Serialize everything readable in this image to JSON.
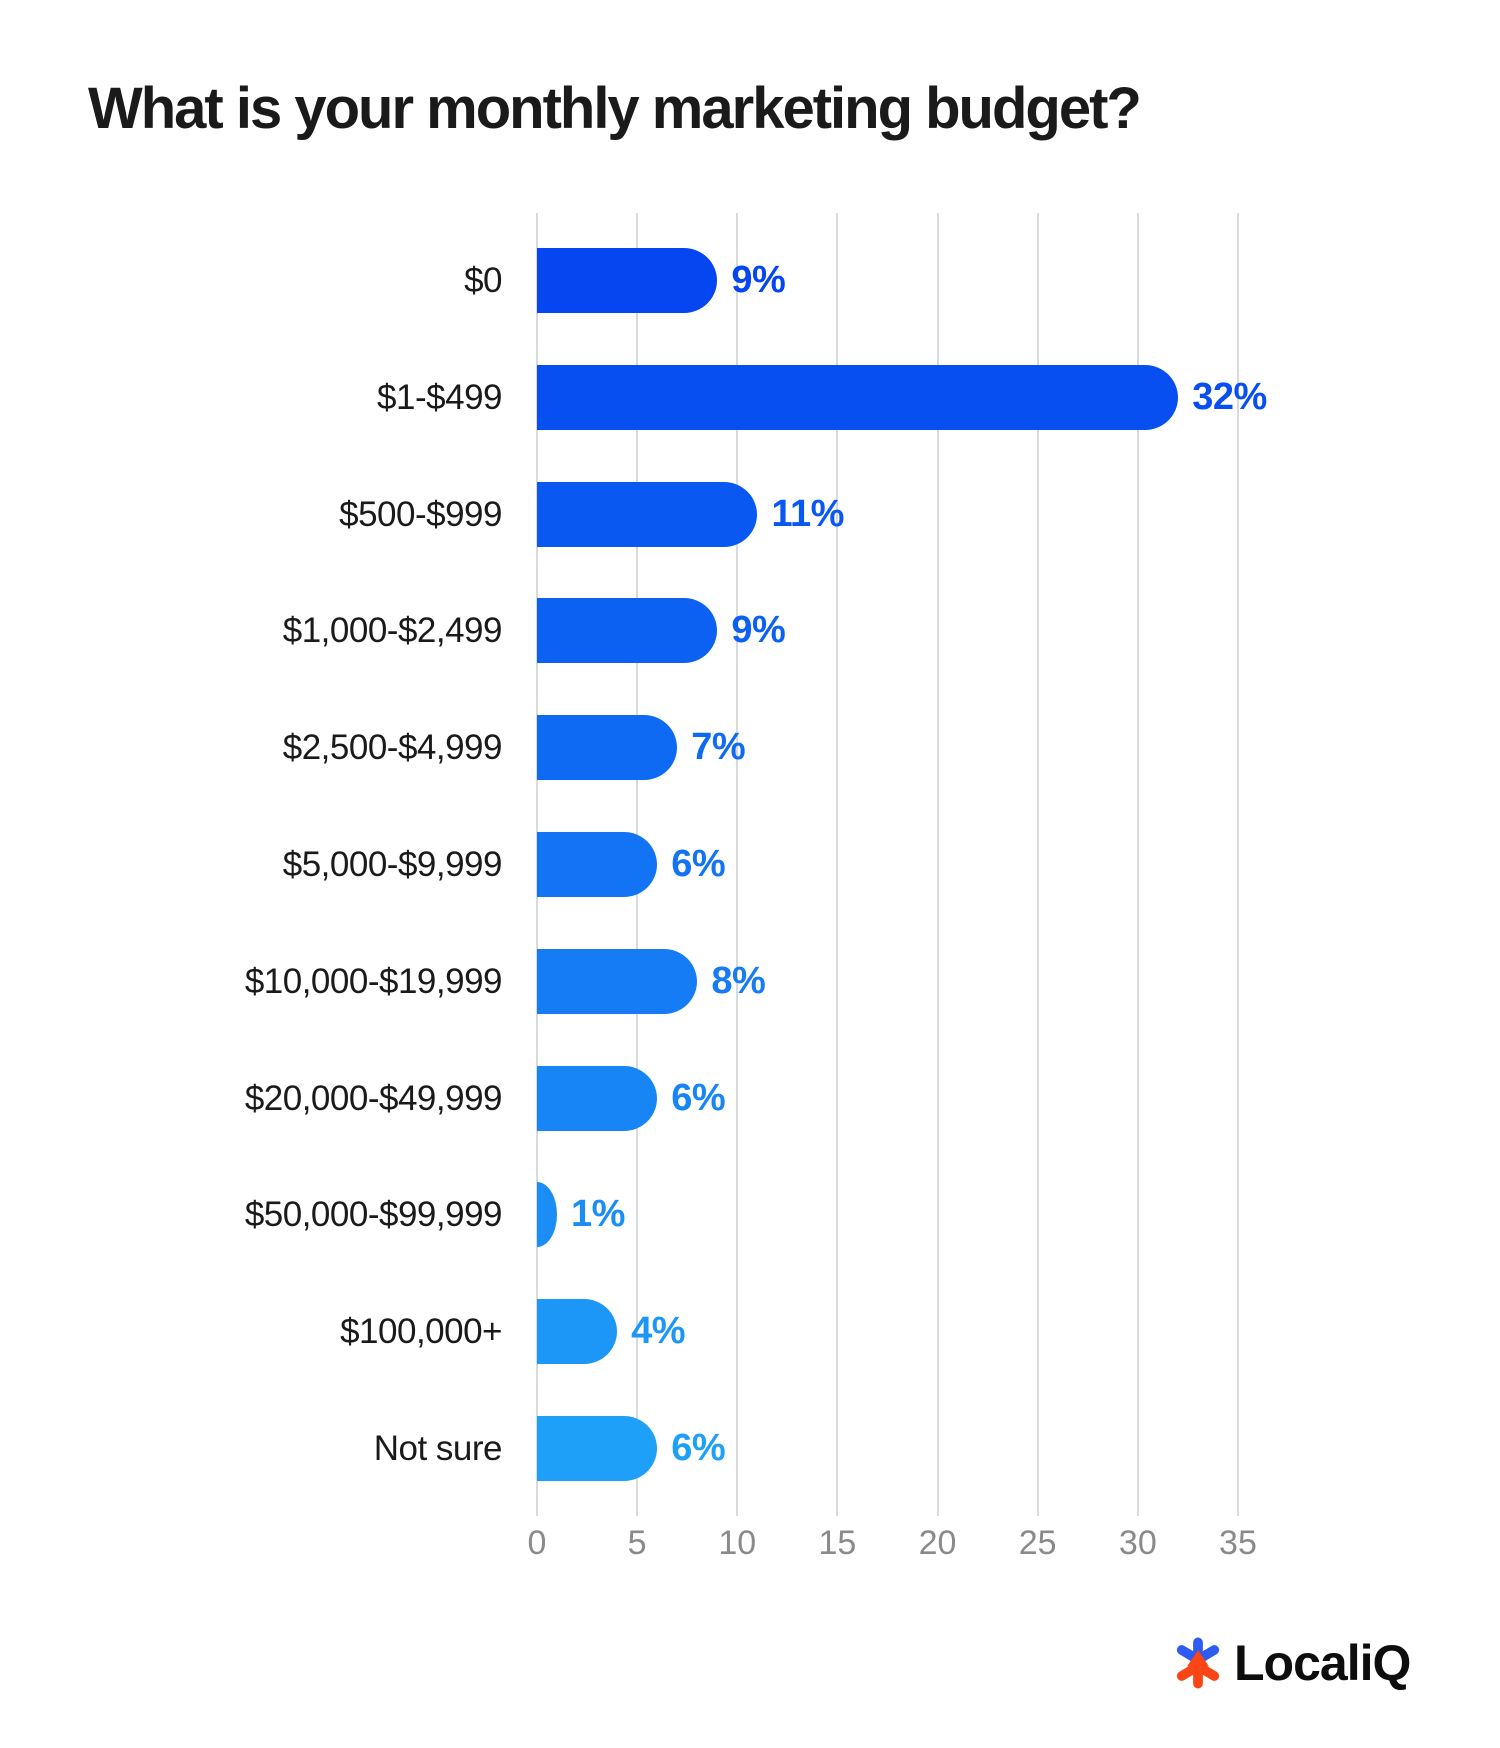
{
  "title": "What is your monthly marketing budget?",
  "chart_data": {
    "type": "bar",
    "orientation": "horizontal",
    "title": "What is your monthly marketing budget?",
    "xlabel": "",
    "ylabel": "",
    "categories": [
      "$0",
      "$1-$499",
      "$500-$999",
      "$1,000-$2,499",
      "$2,500-$4,999",
      "$5,000-$9,999",
      "$10,000-$19,999",
      "$20,000-$49,999",
      "$50,000-$99,999",
      "$100,000+",
      "Not sure"
    ],
    "values": [
      9,
      32,
      11,
      9,
      7,
      6,
      8,
      6,
      1,
      4,
      6
    ],
    "value_labels": [
      "9%",
      "32%",
      "11%",
      "9%",
      "7%",
      "6%",
      "8%",
      "6%",
      "1%",
      "4%",
      "6%"
    ],
    "value_suffix": "%",
    "bar_colors": [
      "#0546F0",
      "#084FF1",
      "#0A58F2",
      "#0D61F2",
      "#0F6AF3",
      "#1273F4",
      "#157CF5",
      "#1785F6",
      "#1A8EF6",
      "#1C97F7",
      "#1FA0F8"
    ],
    "x_ticks": [
      0,
      5,
      10,
      15,
      20,
      25,
      30,
      35
    ],
    "xlim": [
      0,
      35
    ],
    "grid": "vertical-only",
    "legend": "none"
  },
  "colors": {
    "background": "#ffffff",
    "title_text": "#1a1a1a",
    "category_label": "#1a1a1a",
    "tick_label": "#8a8a8a",
    "gridline": "#d8dadc"
  },
  "logo": {
    "text": "LocaliQ",
    "icon": "localiq-asterisk-icon",
    "icon_blue": "#2E5CF1",
    "icon_orange": "#FA4616",
    "text_color": "#0d0d0d"
  }
}
